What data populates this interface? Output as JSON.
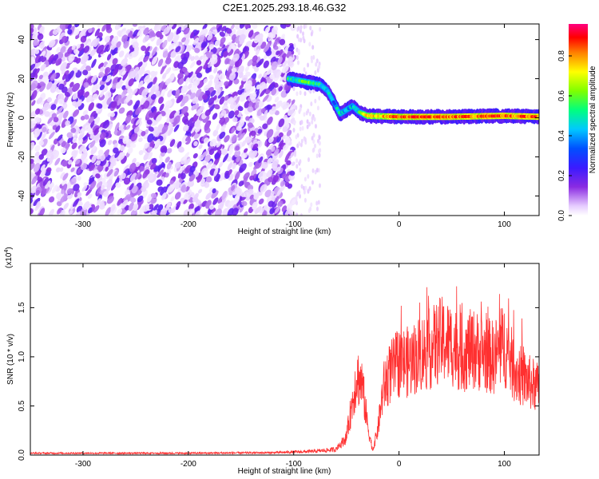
{
  "title": "C2E1.2025.293.18.46.G32",
  "chart_data": [
    {
      "type": "heatmap",
      "xlabel": "Height of straight line (km)",
      "ylabel": "Frequency (Hz)",
      "xlim": [
        -350,
        133
      ],
      "ylim": [
        -50,
        48
      ],
      "x_ticks": [
        -300,
        -200,
        -100,
        0,
        100
      ],
      "x_tick_labels": [
        "-300",
        "-200",
        "-100",
        "0",
        "100"
      ],
      "y_ticks": [
        -40,
        -20,
        0,
        20,
        40
      ],
      "y_tick_labels": [
        "-40",
        "-20",
        "0",
        "20",
        "40"
      ],
      "colorbar": {
        "label": "Normalized spectral amplitude",
        "range": [
          0,
          0.96
        ],
        "ticks": [
          0.0,
          0.2,
          0.4,
          0.6,
          0.8
        ],
        "tick_labels": [
          "0.0",
          "0.2",
          "0.4",
          "0.6",
          "0.8"
        ],
        "colors": [
          "#ffffff",
          "#e6ccff",
          "#8a2be2",
          "#3b1aff",
          "#0050ff",
          "#00c8ff",
          "#00ff7f",
          "#7fff00",
          "#ffff00",
          "#ff8000",
          "#ff0000",
          "#ff0080"
        ]
      },
      "features": {
        "noise_region_x": [
          -350,
          -100
        ],
        "noise_amplitude": 0.15,
        "sparse_noise_x": [
          -100,
          -75
        ],
        "signal_track": [
          {
            "x": -105,
            "y": 20,
            "amp": 0.6
          },
          {
            "x": -95,
            "y": 19,
            "amp": 0.62
          },
          {
            "x": -85,
            "y": 18,
            "amp": 0.65
          },
          {
            "x": -75,
            "y": 17,
            "amp": 0.6
          },
          {
            "x": -68,
            "y": 14,
            "amp": 0.55
          },
          {
            "x": -62,
            "y": 8,
            "amp": 0.5
          },
          {
            "x": -56,
            "y": 2,
            "amp": 0.55
          },
          {
            "x": -50,
            "y": 4,
            "amp": 0.5
          },
          {
            "x": -44,
            "y": 6,
            "amp": 0.55
          },
          {
            "x": -38,
            "y": 3,
            "amp": 0.6
          },
          {
            "x": -30,
            "y": 1,
            "amp": 0.8
          },
          {
            "x": 0,
            "y": 0.5,
            "amp": 0.9
          },
          {
            "x": 50,
            "y": 0.5,
            "amp": 0.9
          },
          {
            "x": 100,
            "y": 1,
            "amp": 0.9
          },
          {
            "x": 133,
            "y": 0.5,
            "amp": 0.9
          }
        ]
      }
    },
    {
      "type": "line",
      "xlabel": "Height of straight line (km)",
      "ylabel": "SNR (10 * v/v)",
      "y_multiplier": "(x10",
      "y_multiplier_exp": "4",
      "y_multiplier_close": ")",
      "xlim": [
        -350,
        133
      ],
      "ylim": [
        0,
        1.95
      ],
      "x_ticks": [
        -300,
        -200,
        -100,
        0,
        100
      ],
      "x_tick_labels": [
        "-300",
        "-200",
        "-100",
        "0",
        "100"
      ],
      "y_ticks": [
        0.0,
        0.5,
        1.0,
        1.5
      ],
      "y_tick_labels": [
        "0.0",
        "0.5",
        "1.0",
        "1.5"
      ],
      "series": [
        {
          "color": "#ff3030",
          "envelope": [
            [
              -350,
              0.02
            ],
            [
              -200,
              0.02
            ],
            [
              -120,
              0.025
            ],
            [
              -80,
              0.04
            ],
            [
              -60,
              0.06
            ],
            [
              -50,
              0.2
            ],
            [
              -45,
              0.55
            ],
            [
              -40,
              0.9
            ],
            [
              -35,
              0.8
            ],
            [
              -30,
              0.35
            ],
            [
              -25,
              0.05
            ],
            [
              -20,
              0.3
            ],
            [
              -15,
              0.75
            ],
            [
              -10,
              0.9
            ],
            [
              0,
              1.05
            ],
            [
              10,
              1.05
            ],
            [
              20,
              1.15
            ],
            [
              30,
              1.2
            ],
            [
              40,
              1.3
            ],
            [
              50,
              1.25
            ],
            [
              60,
              1.15
            ],
            [
              70,
              1.2
            ],
            [
              80,
              1.15
            ],
            [
              90,
              1.1
            ],
            [
              100,
              1.25
            ],
            [
              110,
              0.95
            ],
            [
              120,
              0.85
            ],
            [
              133,
              0.75
            ]
          ]
        }
      ]
    }
  ]
}
